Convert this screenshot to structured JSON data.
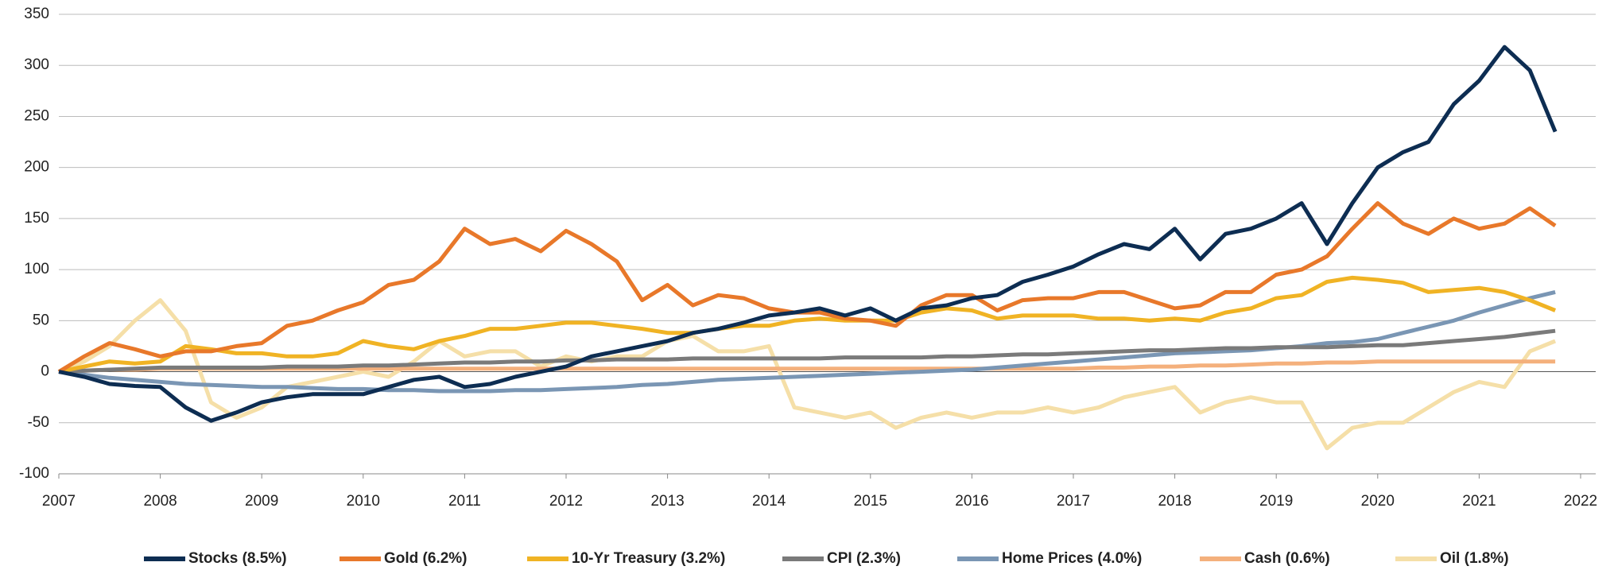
{
  "chart_data": {
    "type": "line",
    "x": [
      2007,
      2007.25,
      2007.5,
      2007.75,
      2008,
      2008.25,
      2008.5,
      2008.75,
      2009,
      2009.25,
      2009.5,
      2009.75,
      2010,
      2010.25,
      2010.5,
      2010.75,
      2011,
      2011.25,
      2011.5,
      2011.75,
      2012,
      2012.25,
      2012.5,
      2012.75,
      2013,
      2013.25,
      2013.5,
      2013.75,
      2014,
      2014.25,
      2014.5,
      2014.75,
      2015,
      2015.25,
      2015.5,
      2015.75,
      2016,
      2016.25,
      2016.5,
      2016.75,
      2017,
      2017.25,
      2017.5,
      2017.75,
      2018,
      2018.25,
      2018.5,
      2018.75,
      2019,
      2019.25,
      2019.5,
      2019.75,
      2020,
      2020.25,
      2020.5,
      2020.75,
      2021,
      2021.25,
      2021.5,
      2021.75
    ],
    "series": [
      {
        "name": "Stocks (8.5%)",
        "color": "#0d2d52",
        "values": [
          0,
          -5,
          -12,
          -14,
          -15,
          -35,
          -48,
          -40,
          -30,
          -25,
          -22,
          -22,
          -22,
          -15,
          -8,
          -5,
          -15,
          -12,
          -5,
          0,
          5,
          15,
          20,
          25,
          30,
          38,
          42,
          48,
          55,
          58,
          62,
          55,
          62,
          50,
          62,
          65,
          72,
          75,
          88,
          95,
          103,
          115,
          125,
          120,
          140,
          110,
          135,
          140,
          150,
          165,
          125,
          165,
          200,
          215,
          225,
          262,
          285,
          318,
          295,
          235
        ]
      },
      {
        "name": "Gold (6.2%)",
        "color": "#e8782a",
        "values": [
          0,
          15,
          28,
          22,
          15,
          20,
          20,
          25,
          28,
          45,
          50,
          60,
          68,
          85,
          90,
          108,
          140,
          125,
          130,
          118,
          138,
          125,
          108,
          70,
          85,
          65,
          75,
          72,
          62,
          58,
          58,
          52,
          50,
          45,
          65,
          75,
          75,
          60,
          70,
          72,
          72,
          78,
          78,
          70,
          62,
          65,
          78,
          78,
          95,
          100,
          113,
          140,
          165,
          145,
          135,
          150,
          140,
          145,
          160,
          143
        ]
      },
      {
        "name": "10-Yr Treasury (3.2%)",
        "color": "#f0b324",
        "values": [
          0,
          5,
          10,
          8,
          10,
          25,
          22,
          18,
          18,
          15,
          15,
          18,
          30,
          25,
          22,
          30,
          35,
          42,
          42,
          45,
          48,
          48,
          45,
          42,
          38,
          38,
          42,
          45,
          45,
          50,
          52,
          50,
          50,
          50,
          58,
          62,
          60,
          52,
          55,
          55,
          55,
          52,
          52,
          50,
          52,
          50,
          58,
          62,
          72,
          75,
          88,
          92,
          90,
          87,
          78,
          80,
          82,
          78,
          70,
          60
        ]
      },
      {
        "name": "CPI (2.3%)",
        "color": "#7a7a7a",
        "values": [
          0,
          1,
          2,
          3,
          4,
          4,
          4,
          4,
          4,
          5,
          5,
          5,
          6,
          6,
          7,
          8,
          9,
          9,
          10,
          10,
          11,
          11,
          12,
          12,
          12,
          13,
          13,
          13,
          13,
          13,
          13,
          14,
          14,
          14,
          14,
          15,
          15,
          16,
          17,
          17,
          18,
          19,
          20,
          21,
          21,
          22,
          23,
          23,
          24,
          24,
          24,
          25,
          26,
          26,
          28,
          30,
          32,
          34,
          37,
          40
        ]
      },
      {
        "name": "Home Prices (4.0%)",
        "color": "#7a96b4",
        "values": [
          0,
          -3,
          -6,
          -8,
          -10,
          -12,
          -13,
          -14,
          -15,
          -15,
          -16,
          -17,
          -17,
          -18,
          -18,
          -19,
          -19,
          -19,
          -18,
          -18,
          -17,
          -16,
          -15,
          -13,
          -12,
          -10,
          -8,
          -7,
          -6,
          -5,
          -4,
          -3,
          -2,
          -1,
          0,
          1,
          2,
          4,
          6,
          8,
          10,
          12,
          14,
          16,
          18,
          19,
          20,
          21,
          23,
          25,
          28,
          29,
          32,
          38,
          44,
          50,
          58,
          65,
          72,
          78
        ]
      },
      {
        "name": "Cash (0.6%)",
        "color": "#f4b07c",
        "values": [
          0,
          1,
          2,
          2,
          3,
          3,
          3,
          3,
          3,
          3,
          3,
          3,
          3,
          3,
          3,
          3,
          3,
          3,
          3,
          3,
          3,
          3,
          3,
          3,
          3,
          3,
          3,
          3,
          3,
          3,
          3,
          3,
          3,
          3,
          3,
          3,
          3,
          3,
          3,
          3,
          3,
          4,
          4,
          5,
          5,
          6,
          6,
          7,
          8,
          8,
          9,
          9,
          10,
          10,
          10,
          10,
          10,
          10,
          10,
          10
        ]
      },
      {
        "name": "Oil (1.8%)",
        "color": "#f5dfa8",
        "values": [
          0,
          10,
          25,
          50,
          70,
          40,
          -30,
          -45,
          -35,
          -15,
          -10,
          -5,
          0,
          -5,
          10,
          30,
          15,
          20,
          20,
          5,
          15,
          10,
          15,
          15,
          30,
          35,
          20,
          20,
          25,
          -35,
          -40,
          -45,
          -40,
          -55,
          -45,
          -40,
          -45,
          -40,
          -40,
          -35,
          -40,
          -35,
          -25,
          -20,
          -15,
          -40,
          -30,
          -25,
          -30,
          -30,
          -75,
          -55,
          -50,
          -50,
          -35,
          -20,
          -10,
          -15,
          20,
          30
        ]
      }
    ],
    "xlim": [
      2007,
      2022
    ],
    "xticks": [
      2007,
      2008,
      2009,
      2010,
      2011,
      2012,
      2013,
      2014,
      2015,
      2016,
      2017,
      2018,
      2019,
      2020,
      2021,
      2022
    ],
    "ylim": [
      -100,
      350
    ],
    "yticks": [
      -100,
      -50,
      0,
      50,
      100,
      150,
      200,
      250,
      300,
      350
    ],
    "grid": true,
    "legend": "bottom"
  }
}
